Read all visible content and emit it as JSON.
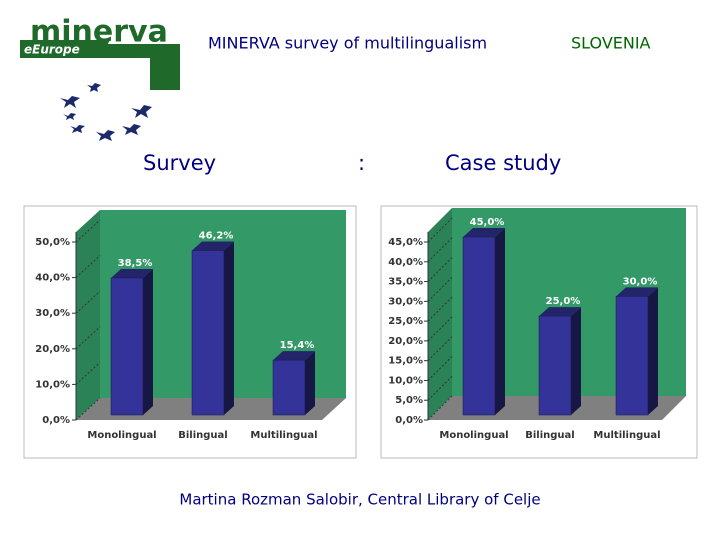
{
  "header": {
    "logo": "minerva",
    "logo_sub": "eEurope",
    "title": "MINERVA survey of multilingualism",
    "title_country": "SLOVENIA",
    "left_label": "Survey",
    "separator": ":",
    "right_label": "Case study"
  },
  "footer": "Martina Rozman Salobir, Central Library of Celje",
  "chart_data": [
    {
      "type": "bar3d",
      "categories": [
        "Monolingual",
        "Bilingual",
        "Multilingual"
      ],
      "values": [
        38.5,
        46.2,
        15.4
      ],
      "value_labels": [
        "38,5%",
        "46,2%",
        "15,4%"
      ],
      "color": "#333399",
      "wall_color": "#339966",
      "floor_color": "#808080",
      "ylim": [
        0,
        50
      ],
      "yticks": [
        {
          "value": 0,
          "label": "0,0%"
        },
        {
          "value": 10,
          "label": "10,0%"
        },
        {
          "value": 20,
          "label": "20,0%"
        },
        {
          "value": 30,
          "label": "30,0%"
        },
        {
          "value": 40,
          "label": "40,0%"
        },
        {
          "value": 50,
          "label": "50,0%"
        }
      ],
      "grid": true
    },
    {
      "type": "bar3d",
      "categories": [
        "Monolingual",
        "Bilingual",
        "Multilingual"
      ],
      "values": [
        45,
        25,
        30
      ],
      "value_labels": [
        "45,0%",
        "25,0%",
        "30,0%"
      ],
      "color": "#333399",
      "wall_color": "#339966",
      "floor_color": "#808080",
      "ylim": [
        0,
        45
      ],
      "yticks": [
        {
          "value": 0,
          "label": "0,0%"
        },
        {
          "value": 5,
          "label": "5,0%"
        },
        {
          "value": 10,
          "label": "10,0%"
        },
        {
          "value": 15,
          "label": "15,0%"
        },
        {
          "value": 20,
          "label": "20,0%"
        },
        {
          "value": 25,
          "label": "25,0%"
        },
        {
          "value": 30,
          "label": "30,0%"
        },
        {
          "value": 35,
          "label": "35,0%"
        },
        {
          "value": 40,
          "label": "40,0%"
        },
        {
          "value": 45,
          "label": "45,0%"
        }
      ],
      "grid": true
    }
  ]
}
